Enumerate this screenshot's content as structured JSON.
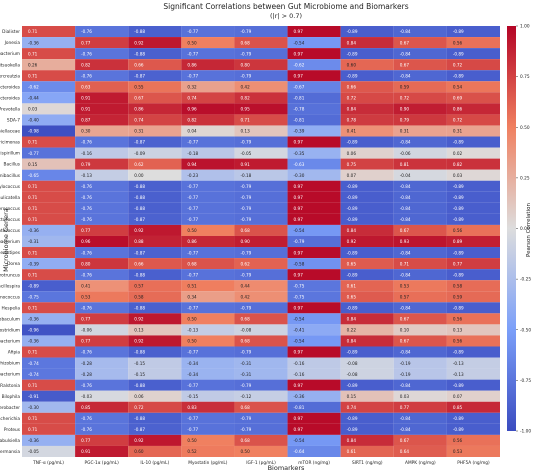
{
  "chart_data": {
    "type": "heatmap",
    "title": "Significant Correlations between Gut Microbiome and Biomarkers",
    "subtitle": "(|r| > 0.7)",
    "xlabel": "Biomarkers",
    "ylabel": "Microbiome Genera",
    "colorbar_label": "Pearson Correlation",
    "colorbar_range": [
      -1.0,
      1.0
    ],
    "colorbar_ticks": [
      "1.00",
      "0.75",
      "0.50",
      "0.25",
      "0.00",
      "-0.25",
      "-0.50",
      "-0.75",
      "-1.00"
    ],
    "colors": {
      "negative": "#3b4cc0",
      "neutral": "#dddddd",
      "positive": "#b40426"
    },
    "x_categories": [
      "TNF-α (pg/mL)",
      "PGC-1α (pg/mL)",
      "IL-10 (pg/mL)",
      "Myostatin (pg/mL)",
      "IGF-1 (pg/mL)",
      "mTOR (ng/mg)",
      "SIRT1 (ng/mg)",
      "AMPK (ng/mg)",
      "PHF5A (ng/mg)"
    ],
    "y_categories": [
      "Dialister",
      "Jonesia",
      "Microbacterium",
      "Mitsuokella",
      "Adlercreutzia",
      "Bacteroides",
      "Parabacteroides",
      "Prevotella",
      "SDA-7",
      "Barnesiellaceae",
      "Butyricimonas",
      "Mucispirillum",
      "Bacillus",
      "Paenibacillus",
      "Staphylococcus",
      "Granulicatella",
      "Enterococcus",
      "Lactococcus",
      "Streptococcus",
      "Dehalobacterium",
      "Anaerostipes",
      "Dorea",
      "Anaerotruncus",
      "Oscillospira",
      "Ruminococcus",
      "Hespelia",
      "Allobaculum",
      "Clostridium",
      "Eubacterium",
      "Afipia",
      "Bradyrhizobium",
      "Methylobacterium",
      "Ralstonia",
      "Bilophila",
      "Enterobacter",
      "Escherichia",
      "Proteus",
      "Trabulsiella",
      "Akkermansia"
    ],
    "values": [
      [
        0.71,
        -0.76,
        -0.88,
        -0.77,
        -0.79,
        0.97,
        -0.89,
        -0.84,
        -0.89
      ],
      [
        -0.36,
        0.77,
        0.92,
        0.5,
        0.68,
        -0.54,
        0.84,
        0.67,
        0.56
      ],
      [
        0.71,
        -0.76,
        -0.88,
        -0.77,
        -0.79,
        0.97,
        -0.89,
        -0.84,
        -0.89
      ],
      [
        0.26,
        0.82,
        0.66,
        0.86,
        0.8,
        -0.62,
        0.6,
        0.67,
        0.72
      ],
      [
        0.71,
        -0.76,
        -0.87,
        -0.77,
        -0.79,
        0.97,
        -0.89,
        -0.84,
        -0.89
      ],
      [
        -0.62,
        0.63,
        0.55,
        0.32,
        0.42,
        -0.67,
        0.66,
        0.59,
        0.54
      ],
      [
        -0.44,
        0.91,
        0.67,
        0.74,
        0.82,
        -0.81,
        0.72,
        0.72,
        0.69
      ],
      [
        0.03,
        0.91,
        0.86,
        0.96,
        0.95,
        -0.78,
        0.84,
        0.9,
        0.86
      ],
      [
        -0.4,
        0.87,
        0.74,
        0.82,
        0.71,
        -0.81,
        0.78,
        0.79,
        0.72
      ],
      [
        -0.98,
        0.3,
        0.31,
        0.04,
        0.13,
        -0.39,
        0.41,
        0.31,
        0.31
      ],
      [
        0.71,
        -0.76,
        -0.87,
        -0.77,
        -0.79,
        0.97,
        -0.89,
        -0.84,
        -0.89
      ],
      [
        -0.77,
        -0.16,
        -0.09,
        -0.18,
        -0.05,
        -0.35,
        0.06,
        -0.06,
        0.02
      ],
      [
        0.15,
        0.79,
        0.62,
        0.94,
        0.91,
        -0.63,
        0.75,
        0.81,
        0.82
      ],
      [
        -0.65,
        -0.13,
        -0.0,
        -0.23,
        -0.18,
        -0.3,
        0.07,
        -0.04,
        0.03
      ],
      [
        0.71,
        -0.76,
        -0.88,
        -0.77,
        -0.79,
        0.97,
        -0.89,
        -0.84,
        -0.89
      ],
      [
        0.71,
        -0.76,
        -0.88,
        -0.77,
        -0.79,
        0.97,
        -0.89,
        -0.84,
        -0.89
      ],
      [
        0.71,
        -0.76,
        -0.88,
        -0.77,
        -0.79,
        0.97,
        -0.89,
        -0.84,
        -0.89
      ],
      [
        0.71,
        -0.76,
        -0.87,
        -0.77,
        -0.79,
        0.97,
        -0.89,
        -0.84,
        -0.89
      ],
      [
        -0.36,
        0.77,
        0.92,
        0.5,
        0.68,
        -0.54,
        0.84,
        0.67,
        0.56
      ],
      [
        -0.31,
        0.96,
        0.88,
        0.86,
        0.9,
        -0.79,
        0.92,
        0.93,
        0.89
      ],
      [
        0.71,
        -0.76,
        -0.87,
        -0.77,
        -0.79,
        0.97,
        -0.89,
        -0.84,
        -0.89
      ],
      [
        -0.39,
        0.8,
        0.66,
        0.68,
        0.62,
        -0.58,
        0.65,
        0.71,
        0.77
      ],
      [
        0.71,
        -0.76,
        -0.88,
        -0.77,
        -0.79,
        0.97,
        -0.89,
        -0.84,
        -0.89
      ],
      [
        -0.89,
        0.41,
        0.57,
        0.51,
        0.44,
        -0.75,
        0.61,
        0.53,
        0.58
      ],
      [
        -0.75,
        0.53,
        0.58,
        0.34,
        0.42,
        -0.75,
        0.65,
        0.57,
        0.59
      ],
      [
        0.71,
        -0.76,
        -0.88,
        -0.77,
        -0.79,
        0.97,
        -0.89,
        -0.84,
        -0.89
      ],
      [
        -0.36,
        0.77,
        0.92,
        0.5,
        0.68,
        -0.54,
        0.84,
        0.67,
        0.56
      ],
      [
        -0.96,
        -0.06,
        0.13,
        -0.13,
        -0.08,
        -0.41,
        0.22,
        0.1,
        0.13
      ],
      [
        -0.36,
        0.77,
        0.92,
        0.5,
        0.68,
        -0.54,
        0.84,
        0.67,
        0.56
      ],
      [
        0.71,
        -0.76,
        -0.88,
        -0.77,
        -0.79,
        0.97,
        -0.89,
        -0.84,
        -0.89
      ],
      [
        -0.74,
        -0.28,
        -0.15,
        -0.34,
        -0.31,
        -0.16,
        -0.08,
        -0.19,
        -0.13
      ],
      [
        -0.74,
        -0.28,
        -0.15,
        -0.34,
        -0.31,
        -0.16,
        -0.08,
        -0.19,
        -0.13
      ],
      [
        0.71,
        -0.76,
        -0.88,
        -0.77,
        -0.79,
        0.97,
        -0.89,
        -0.84,
        -0.89
      ],
      [
        -0.91,
        -0.03,
        0.06,
        -0.15,
        -0.12,
        -0.36,
        0.15,
        0.03,
        0.07
      ],
      [
        -0.3,
        0.85,
        0.72,
        0.83,
        0.68,
        -0.81,
        0.74,
        0.77,
        0.85
      ],
      [
        0.71,
        -0.76,
        -0.88,
        -0.77,
        -0.79,
        0.97,
        -0.89,
        -0.84,
        -0.89
      ],
      [
        0.71,
        -0.76,
        -0.87,
        -0.77,
        -0.79,
        0.97,
        -0.89,
        -0.84,
        -0.89
      ],
      [
        -0.36,
        0.77,
        0.92,
        0.5,
        0.68,
        -0.54,
        0.84,
        0.67,
        0.56
      ],
      [
        -0.05,
        0.91,
        0.6,
        0.52,
        0.5,
        -0.64,
        0.61,
        0.64,
        0.53
      ]
    ]
  }
}
